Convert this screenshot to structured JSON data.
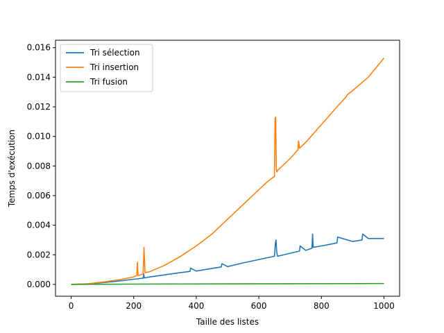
{
  "chart_data": {
    "type": "line",
    "title": "",
    "xlabel": "Taille des listes",
    "ylabel": "Temps d'exécution",
    "xlim": [
      -50,
      1050
    ],
    "ylim": [
      -0.0008,
      0.0165
    ],
    "xticks": [
      0,
      200,
      400,
      600,
      800,
      1000
    ],
    "xtick_labels": [
      "0",
      "200",
      "400",
      "600",
      "800",
      "1000"
    ],
    "yticks": [
      0.0,
      0.002,
      0.004,
      0.006,
      0.008,
      0.01,
      0.012,
      0.014,
      0.016
    ],
    "ytick_labels": [
      "0.000",
      "0.002",
      "0.004",
      "0.006",
      "0.008",
      "0.010",
      "0.012",
      "0.014",
      "0.016"
    ],
    "grid": false,
    "legend": "top-left",
    "series": [
      {
        "name": "Tri sélection",
        "color": "#1f77b4",
        "x": [
          0,
          50,
          100,
          150,
          200,
          230,
          232,
          234,
          250,
          300,
          350,
          380,
          382,
          400,
          450,
          480,
          482,
          500,
          550,
          600,
          650,
          653,
          655,
          657,
          660,
          700,
          730,
          732,
          750,
          770,
          772,
          774,
          800,
          850,
          852,
          900,
          930,
          932,
          950,
          1000
        ],
        "y": [
          0.0,
          3e-05,
          0.00012,
          0.00022,
          0.00035,
          0.00042,
          0.0007,
          0.00044,
          0.0005,
          0.00065,
          0.0008,
          0.00088,
          0.0011,
          0.0009,
          0.00108,
          0.00118,
          0.0014,
          0.0012,
          0.00145,
          0.00168,
          0.0019,
          0.0028,
          0.003,
          0.0022,
          0.0019,
          0.0021,
          0.00225,
          0.0026,
          0.0023,
          0.00245,
          0.0034,
          0.0025,
          0.0026,
          0.0028,
          0.0032,
          0.0029,
          0.003,
          0.0034,
          0.0031,
          0.0031
        ]
      },
      {
        "name": "Tri insertion",
        "color": "#ff7f0e",
        "x": [
          0,
          50,
          100,
          150,
          200,
          210,
          212,
          214,
          230,
          233,
          236,
          250,
          300,
          350,
          400,
          450,
          500,
          550,
          600,
          625,
          650,
          652,
          654,
          656,
          658,
          660,
          700,
          725,
          727,
          730,
          750,
          800,
          850,
          880,
          882,
          900,
          950,
          1000
        ],
        "y": [
          0.0,
          4e-05,
          0.00015,
          0.0003,
          0.0005,
          0.0006,
          0.0015,
          0.0006,
          0.0007,
          0.0025,
          0.0008,
          0.00085,
          0.0013,
          0.0019,
          0.0026,
          0.0034,
          0.0044,
          0.0054,
          0.0064,
          0.0069,
          0.0073,
          0.0112,
          0.0113,
          0.0078,
          0.0076,
          0.0077,
          0.0085,
          0.0091,
          0.0097,
          0.0092,
          0.0096,
          0.0108,
          0.012,
          0.0127,
          0.0128,
          0.0131,
          0.014,
          0.0153
        ]
      },
      {
        "name": "Tri fusion",
        "color": "#2ca02c",
        "x": [
          0,
          200,
          400,
          600,
          800,
          1000
        ],
        "y": [
          0.0,
          2e-05,
          3e-05,
          4e-05,
          5e-05,
          6e-05
        ]
      }
    ]
  }
}
